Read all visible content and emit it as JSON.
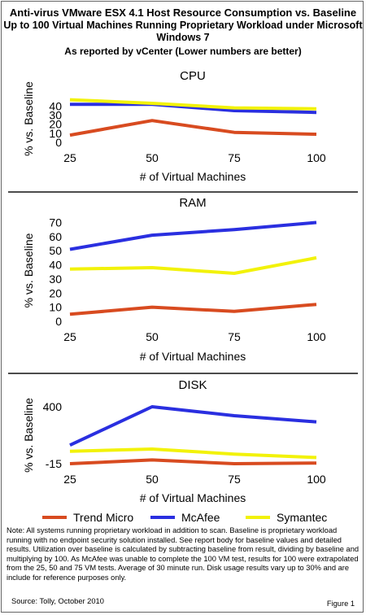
{
  "header": {
    "line1": "Anti-virus VMware ESX 4.1 Host Resource Consumption vs. Baseline",
    "line2": "Up to 100 Virtual Machines Running Proprietary Workload under Microsoft Windows 7",
    "line3": "As reported by vCenter (Lower numbers are better)"
  },
  "colors": {
    "trend_micro": "#d84b20",
    "mcafee": "#2a2fe0",
    "symantec": "#f2f20a"
  },
  "chart_data": [
    {
      "type": "line",
      "title": "CPU",
      "xlabel": "# of Virtual Machines",
      "ylabel": "% vs. Baseline",
      "x": [
        25,
        50,
        75,
        100
      ],
      "ylim": [
        0,
        52
      ],
      "yticks": [
        0,
        10,
        20,
        30,
        40
      ],
      "series": [
        {
          "name": "Trend Micro",
          "values": [
            8,
            24,
            11,
            9
          ]
        },
        {
          "name": "McAfee",
          "values": [
            42,
            42,
            35,
            33
          ]
        },
        {
          "name": "Symantec",
          "values": [
            47,
            43,
            38,
            37
          ]
        }
      ]
    },
    {
      "type": "line",
      "title": "RAM",
      "xlabel": "# of Virtual Machines",
      "ylabel": "% vs. Baseline",
      "x": [
        25,
        50,
        75,
        100
      ],
      "ylim": [
        0,
        72
      ],
      "yticks": [
        0,
        10,
        20,
        30,
        40,
        50,
        60,
        70
      ],
      "series": [
        {
          "name": "Trend Micro",
          "values": [
            5,
            10,
            7,
            12
          ]
        },
        {
          "name": "McAfee",
          "values": [
            51,
            61,
            65,
            70
          ]
        },
        {
          "name": "Symantec",
          "values": [
            37,
            38,
            34,
            45
          ]
        }
      ]
    },
    {
      "type": "line",
      "title": "DISK",
      "xlabel": "# of Virtual Machines",
      "ylabel": "% vs. Baseline",
      "x": [
        25,
        50,
        75,
        100
      ],
      "ylim": [
        -15,
        400
      ],
      "yticks": [
        -15,
        400
      ],
      "series": [
        {
          "name": "Trend Micro",
          "values": [
            -15,
            12,
            -15,
            -10
          ]
        },
        {
          "name": "McAfee",
          "values": [
            120,
            400,
            335,
            290
          ]
        },
        {
          "name": "Symantec",
          "values": [
            75,
            92,
            55,
            30
          ]
        }
      ]
    }
  ],
  "legend": [
    {
      "label": "Trend Micro",
      "color_key": "trend_micro"
    },
    {
      "label": "McAfee",
      "color_key": "mcafee"
    },
    {
      "label": "Symantec",
      "color_key": "symantec"
    }
  ],
  "note": "Note: All systems running proprietary workload in addition to scan. Baseline is proprietary workload running with no endpoint security solution installed. See report body for baseline values and detailed results. Utilization over baseline is calculated by subtracting baseline from result, dividing by baseline and multiplying by 100. As McAfee was unable to complete the 100 VM test, results for 100 were extrapolated from the 25, 50 and 75 VM tests. Average of 30 minute run. Disk usage results vary up to 30% and are include for reference purposes only.",
  "source": "Source: Tolly, October 2010",
  "figure_label": "Figure 1"
}
